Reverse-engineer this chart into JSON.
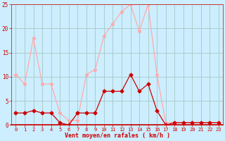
{
  "x": [
    0,
    1,
    2,
    3,
    4,
    5,
    6,
    7,
    8,
    9,
    10,
    11,
    12,
    13,
    14,
    15,
    16,
    17,
    18,
    19,
    20,
    21,
    22,
    23
  ],
  "wind_avg": [
    2.5,
    2.5,
    3.0,
    2.5,
    2.5,
    0.5,
    0.0,
    2.5,
    2.5,
    2.5,
    7.0,
    7.0,
    7.0,
    10.5,
    7.0,
    8.5,
    3.0,
    0.0,
    0.5,
    0.5,
    0.5,
    0.5,
    0.5,
    0.5
  ],
  "wind_gust": [
    10.5,
    8.5,
    18.0,
    8.5,
    8.5,
    2.5,
    1.0,
    1.0,
    10.5,
    11.5,
    18.5,
    21.0,
    23.5,
    25.0,
    19.5,
    25.0,
    10.5,
    0.5,
    0.5,
    0.5,
    0.5,
    0.5,
    0.5,
    0.5
  ],
  "avg_color": "#cc0000",
  "gust_color": "#ffaaaa",
  "bg_color": "#cceeff",
  "grid_color": "#aacccc",
  "xlabel": "Vent moyen/en rafales ( km/h )",
  "xlim_min": -0.5,
  "xlim_max": 23.5,
  "ylim_min": 0,
  "ylim_max": 25,
  "yticks": [
    0,
    5,
    10,
    15,
    20,
    25
  ],
  "xticks": [
    0,
    1,
    2,
    3,
    4,
    5,
    6,
    7,
    8,
    9,
    10,
    11,
    12,
    13,
    14,
    15,
    16,
    17,
    18,
    19,
    20,
    21,
    22,
    23
  ],
  "tick_color": "#cc0000",
  "label_color": "#cc0000",
  "spine_color": "#cc0000"
}
